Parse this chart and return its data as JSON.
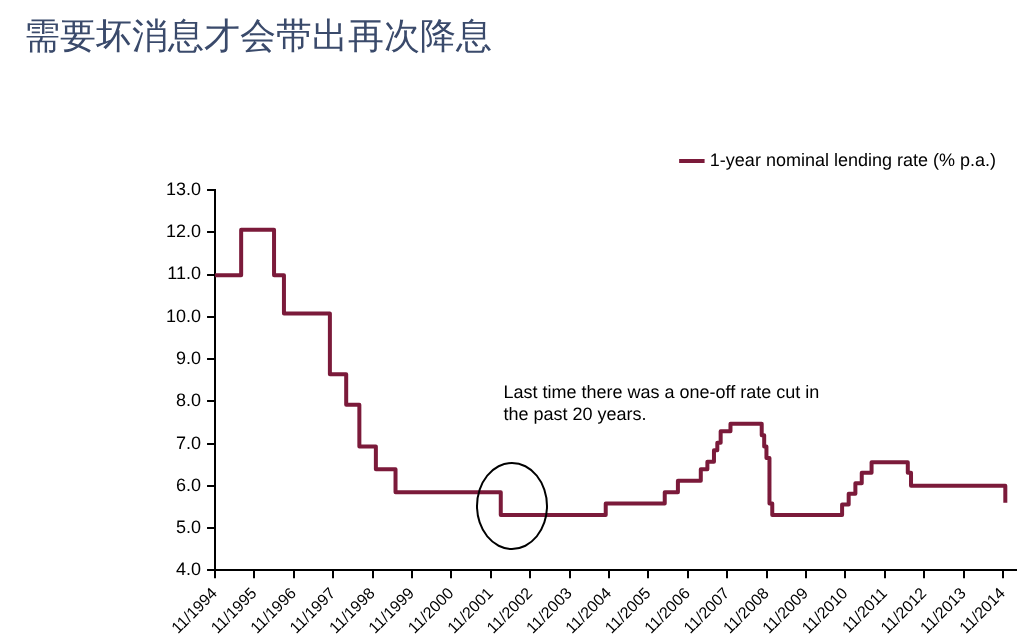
{
  "chart_data": {
    "type": "step",
    "title": "需要坏消息才会带出再次降息",
    "x": [
      "1994-11",
      "1995-07",
      "1996-05",
      "1996-08",
      "1997-10",
      "1998-03",
      "1998-07",
      "1998-12",
      "1999-06",
      "2002-02",
      "2004-10",
      "2006-04",
      "2006-08",
      "2007-03",
      "2007-05",
      "2007-07",
      "2007-08",
      "2007-09",
      "2007-12",
      "2008-09-16",
      "2008-10-09",
      "2008-10-30",
      "2008-11-27",
      "2008-12-23",
      "2010-10",
      "2010-12",
      "2011-02",
      "2011-04",
      "2011-07",
      "2012-06",
      "2012-07",
      "2014-11-22"
    ],
    "series": [
      {
        "name": "1-year nominal lending rate (% p.a.)",
        "color": "#7b1a3a",
        "values": [
          10.98,
          12.06,
          10.98,
          10.08,
          8.64,
          7.92,
          6.93,
          6.39,
          5.85,
          5.31,
          5.58,
          5.85,
          6.12,
          6.39,
          6.57,
          6.84,
          7.02,
          7.29,
          7.47,
          7.2,
          6.93,
          6.66,
          5.58,
          5.31,
          5.56,
          5.81,
          6.06,
          6.31,
          6.56,
          6.31,
          6.0,
          5.6
        ]
      }
    ],
    "xlim": [
      "1994-11",
      "2015-03"
    ],
    "xticks": [
      {
        "value": "1994-11",
        "label": "11/1994"
      },
      {
        "value": "1995-11",
        "label": "11/1995"
      },
      {
        "value": "1996-11",
        "label": "11/1996"
      },
      {
        "value": "1997-11",
        "label": "11/1997"
      },
      {
        "value": "1998-11",
        "label": "11/1998"
      },
      {
        "value": "1999-11",
        "label": "11/1999"
      },
      {
        "value": "2000-11",
        "label": "11/2000"
      },
      {
        "value": "2001-11",
        "label": "11/2001"
      },
      {
        "value": "2002-11",
        "label": "11/2002"
      },
      {
        "value": "2003-11",
        "label": "11/2003"
      },
      {
        "value": "2004-11",
        "label": "11/2004"
      },
      {
        "value": "2005-11",
        "label": "11/2005"
      },
      {
        "value": "2006-11",
        "label": "11/2006"
      },
      {
        "value": "2007-11",
        "label": "11/2007"
      },
      {
        "value": "2008-11",
        "label": "11/2008"
      },
      {
        "value": "2009-11",
        "label": "11/2009"
      },
      {
        "value": "2010-11",
        "label": "11/2010"
      },
      {
        "value": "2011-11",
        "label": "11/2011"
      },
      {
        "value": "2012-11",
        "label": "11/2012"
      },
      {
        "value": "2013-11",
        "label": "11/2013"
      },
      {
        "value": "2014-11",
        "label": "11/2014"
      }
    ],
    "ylim": [
      4,
      13
    ],
    "yticks": [
      {
        "value": 4,
        "label": "4.0"
      },
      {
        "value": 5,
        "label": "5.0"
      },
      {
        "value": 6,
        "label": "6.0"
      },
      {
        "value": 7,
        "label": "7.0"
      },
      {
        "value": 8,
        "label": "8.0"
      },
      {
        "value": 9,
        "label": "9.0"
      },
      {
        "value": 10,
        "label": "10.0"
      },
      {
        "value": 11,
        "label": "11.0"
      },
      {
        "value": 12,
        "label": "12.0"
      },
      {
        "value": 13,
        "label": "13.0"
      }
    ],
    "annotations": [
      "Last time there was a one-off rate cut in the past 20 years."
    ],
    "grid": false,
    "legend": "top right",
    "marker": "none",
    "line_style": "solid"
  }
}
